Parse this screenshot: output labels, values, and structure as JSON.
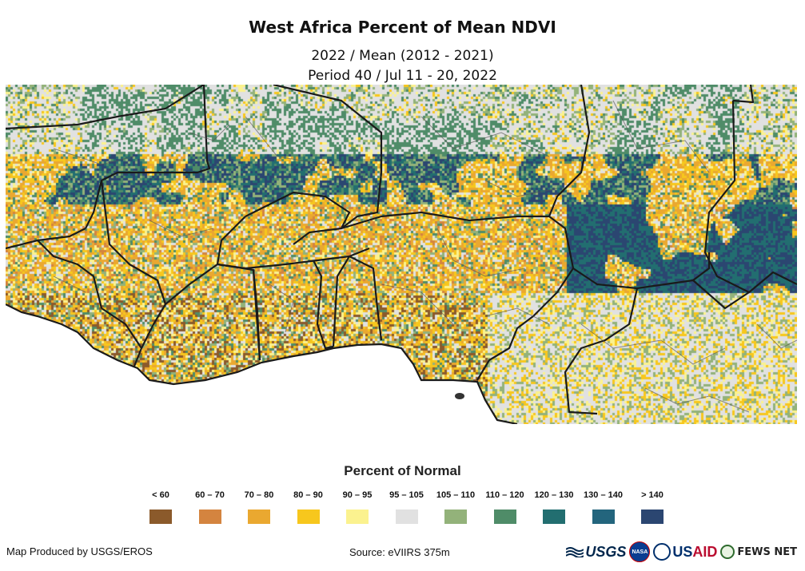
{
  "header": {
    "title": "West Africa Percent of Mean NDVI",
    "subtitle_1": "2022 / Mean (2012 - 2021)",
    "subtitle_2": "Period 40 / Jul 11 - 20, 2022"
  },
  "legend": {
    "title": "Percent of Normal",
    "classes": [
      {
        "label": "< 60",
        "color": "#8b5a2b"
      },
      {
        "label": "60 – 70",
        "color": "#d4843f"
      },
      {
        "label": "70 – 80",
        "color": "#eaa830"
      },
      {
        "label": "80 – 90",
        "color": "#f7c71d"
      },
      {
        "label": "90 – 95",
        "color": "#fbf28f"
      },
      {
        "label": "95 – 105",
        "color": "#e1e1e1"
      },
      {
        "label": "105 – 110",
        "color": "#93b27a"
      },
      {
        "label": "110 – 120",
        "color": "#4f8c68"
      },
      {
        "label": "120 – 130",
        "color": "#226e70"
      },
      {
        "label": "130 – 140",
        "color": "#23657d"
      },
      {
        "label": "> 140",
        "color": "#2b4671"
      }
    ]
  },
  "footer": {
    "credit": "Map Produced by USGS/EROS",
    "source": "Source: eVIIRS 375m"
  },
  "logos": {
    "usgs": "USGS",
    "nasa": "NASA",
    "usaid_1": "US",
    "usaid_2": "AID",
    "fews": "FEWS NET"
  }
}
